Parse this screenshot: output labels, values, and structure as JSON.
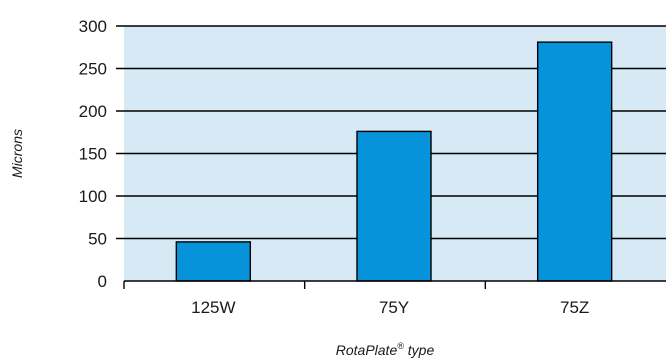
{
  "chart_data": {
    "type": "bar",
    "categories": [
      "125W",
      "75Y",
      "75Z"
    ],
    "values": [
      46,
      176,
      281
    ],
    "title": "",
    "xlabel": "RotaPlate® type",
    "xlabel_main": "RotaPlate",
    "xlabel_sup": "®",
    "xlabel_tail": " type",
    "ylabel": "Microns",
    "ylim": [
      0,
      300
    ],
    "yticks": [
      0,
      50,
      100,
      150,
      200,
      250,
      300
    ],
    "grid": true,
    "legend": "none",
    "colors": {
      "plot_background": "#d6e9f5",
      "bar_fill": "#0693d9",
      "bar_stroke": "#000000",
      "grid": "#000000",
      "text": "#1a1a1a"
    }
  }
}
